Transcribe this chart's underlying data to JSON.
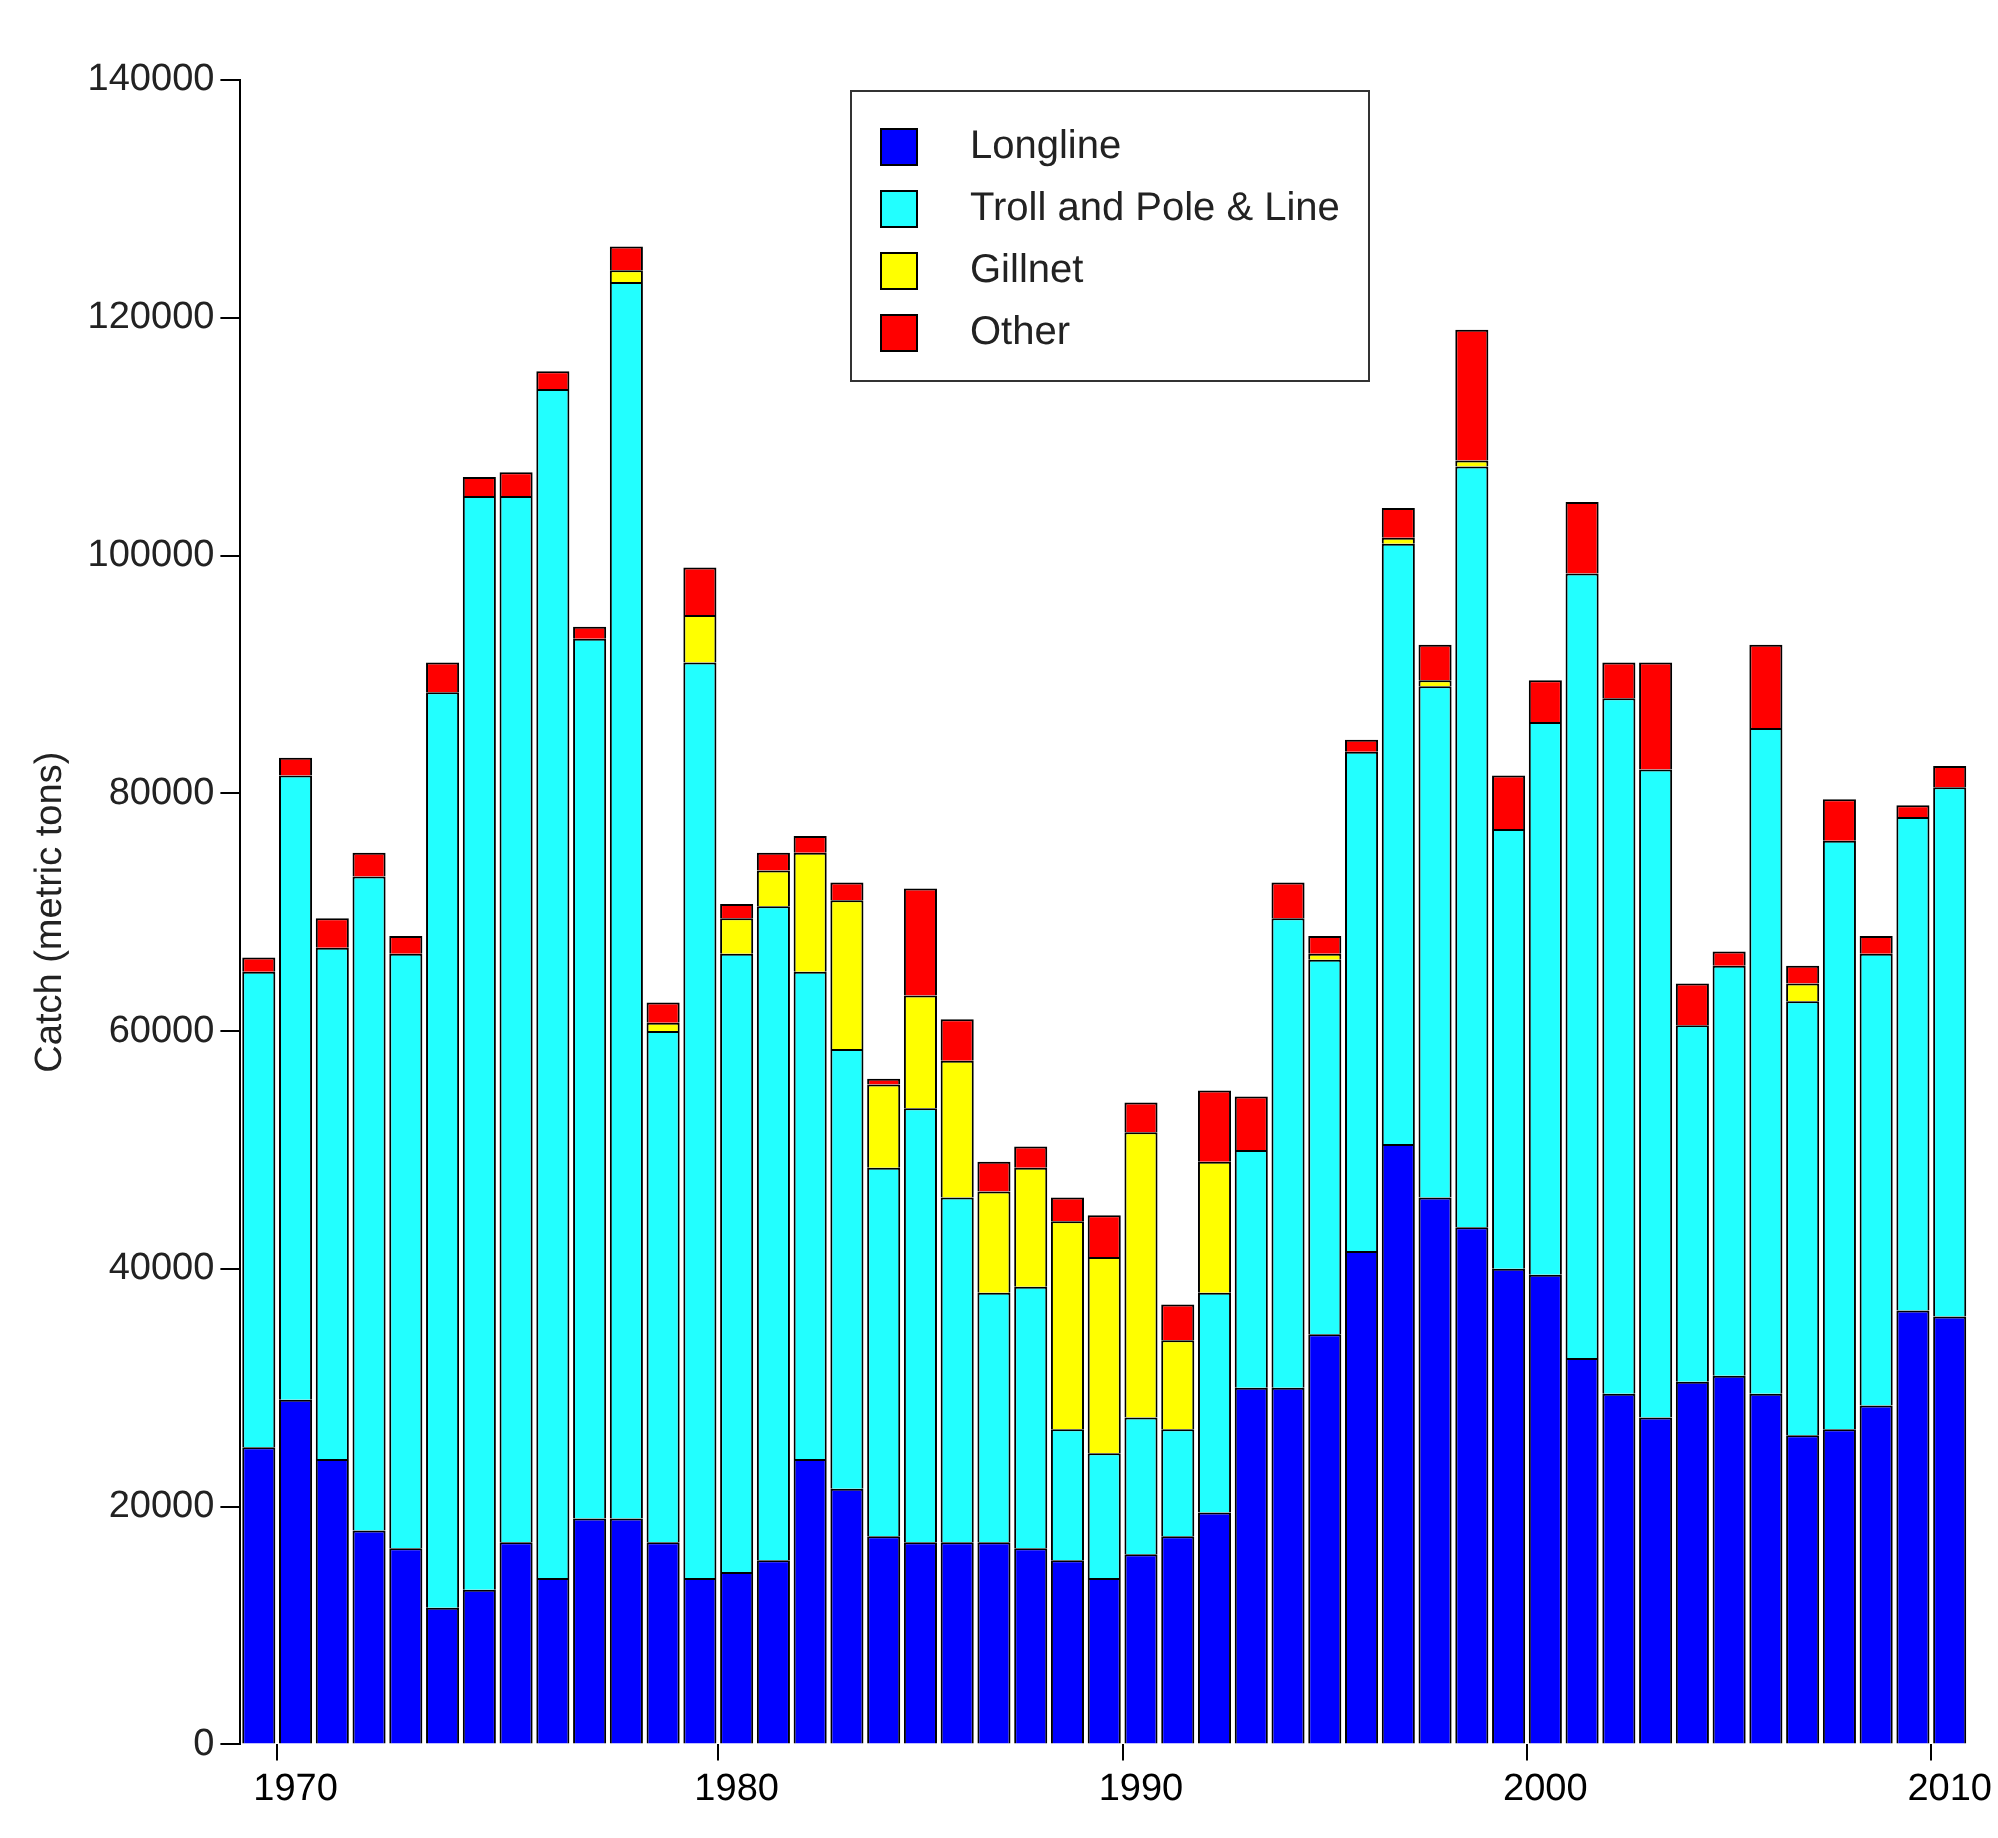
{
  "chart_data": {
    "type": "bar",
    "stacked": true,
    "ylabel": "Catch (metric tons)",
    "categories": [
      null,
      "1970",
      null,
      null,
      null,
      null,
      null,
      null,
      null,
      null,
      null,
      null,
      null,
      "1980",
      null,
      null,
      null,
      null,
      null,
      null,
      null,
      null,
      null,
      null,
      "1990",
      null,
      null,
      null,
      null,
      null,
      null,
      null,
      null,
      null,
      null,
      "2000",
      null,
      null,
      null,
      null,
      null,
      null,
      null,
      null,
      null,
      null,
      "2010"
    ],
    "ylim": [
      0,
      140000
    ],
    "yticks": [
      0,
      20000,
      40000,
      60000,
      80000,
      100000,
      120000,
      140000
    ],
    "grid": false,
    "legend": "top",
    "series": [
      {
        "name": "Longline",
        "color": "#0000ff",
        "values": [
          25000,
          29000,
          24000,
          18000,
          16500,
          11500,
          13000,
          17000,
          14000,
          19000,
          19000,
          17000,
          14000,
          14500,
          15500,
          24000,
          21500,
          17500,
          17000,
          17000,
          17000,
          16500,
          15500,
          14000,
          16000,
          17500,
          19500,
          30000,
          30000,
          34500,
          41500,
          50500,
          46000,
          43500,
          40000,
          39500,
          32500,
          29500,
          27500,
          30500,
          31000,
          29500,
          26000,
          26500,
          28500,
          36500,
          36000
        ]
      },
      {
        "name": "Troll and Pole & Line",
        "color": "#22ffff",
        "values": [
          40000,
          52500,
          43000,
          55000,
          50000,
          77000,
          92000,
          88000,
          100000,
          74000,
          104000,
          43000,
          77000,
          52000,
          55000,
          41000,
          37000,
          31000,
          36500,
          29000,
          21000,
          22000,
          11000,
          10500,
          11500,
          9000,
          18500,
          20000,
          39500,
          31500,
          42000,
          50500,
          43000,
          64000,
          37000,
          46500,
          66000,
          58500,
          54500,
          30000,
          34500,
          56000,
          36500,
          49500,
          38000,
          41500,
          44500
        ]
      },
      {
        "name": "Gillnet",
        "color": "#ffff00",
        "values": [
          0,
          0,
          0,
          0,
          0,
          0,
          0,
          0,
          0,
          0,
          1000,
          700,
          4000,
          3000,
          3000,
          10000,
          12500,
          7000,
          9500,
          11500,
          8500,
          10000,
          17500,
          16500,
          24000,
          7500,
          11000,
          0,
          0,
          500,
          0,
          500,
          500,
          500,
          0,
          0,
          0,
          0,
          0,
          0,
          0,
          0,
          1500,
          0,
          0,
          0,
          0
        ]
      },
      {
        "name": "Other",
        "color": "#ff0000",
        "values": [
          1200,
          1500,
          2500,
          2000,
          1500,
          2500,
          1600,
          2000,
          1500,
          1000,
          2000,
          1700,
          4000,
          1200,
          1500,
          1400,
          1500,
          500,
          9000,
          3500,
          2500,
          1800,
          2000,
          3500,
          2500,
          3000,
          6000,
          4500,
          3000,
          1500,
          1000,
          2500,
          3000,
          11000,
          4500,
          3500,
          6000,
          3000,
          9000,
          3500,
          1200,
          7000,
          1500,
          3500,
          1500,
          1000,
          1800
        ]
      }
    ]
  }
}
